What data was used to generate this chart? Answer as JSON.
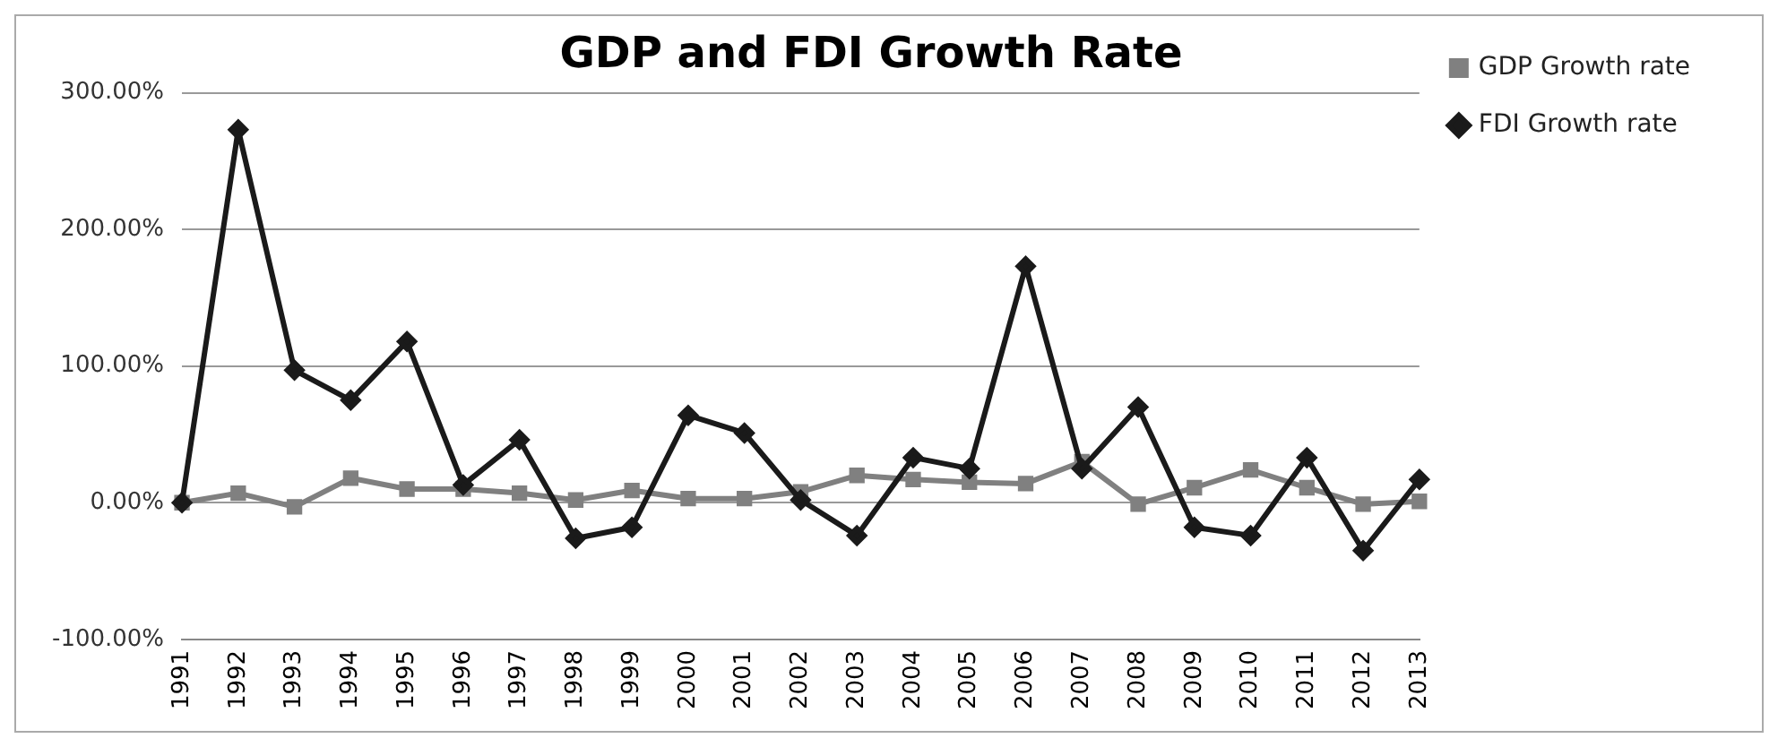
{
  "chart_data": {
    "type": "line",
    "title": "GDP and FDI Growth Rate",
    "categories": [
      "1991",
      "1992",
      "1993",
      "1994",
      "1995",
      "1996",
      "1997",
      "1998",
      "1999",
      "2000",
      "2001",
      "2002",
      "2003",
      "2004",
      "2005",
      "2006",
      "2007",
      "2008",
      "2009",
      "2010",
      "2011",
      "2012",
      "2013"
    ],
    "series": [
      {
        "name": "GDP Growth rate",
        "color": "#808080",
        "marker": "square",
        "values": [
          0,
          7,
          -3,
          18,
          10,
          10,
          7,
          2,
          9,
          3,
          3,
          8,
          20,
          17,
          15,
          14,
          30,
          -1,
          11,
          24,
          11,
          -1,
          1
        ]
      },
      {
        "name": "FDI Growth rate",
        "color": "#1a1a1a",
        "marker": "diamond",
        "values": [
          0,
          273,
          97,
          75,
          118,
          13,
          46,
          -26,
          -18,
          64,
          51,
          2,
          -24,
          33,
          25,
          173,
          25,
          70,
          -18,
          -24,
          33,
          -35,
          17
        ]
      }
    ],
    "ylim": [
      -100,
      300
    ],
    "yticks": [
      {
        "value": -100,
        "label": "-100.00%"
      },
      {
        "value": 0,
        "label": "0.00%"
      },
      {
        "value": 100,
        "label": "100.00%"
      },
      {
        "value": 200,
        "label": "200.00%"
      },
      {
        "value": 300,
        "label": "300.00%"
      }
    ],
    "grid": "y",
    "legend": "top right",
    "line_style": "solid"
  }
}
